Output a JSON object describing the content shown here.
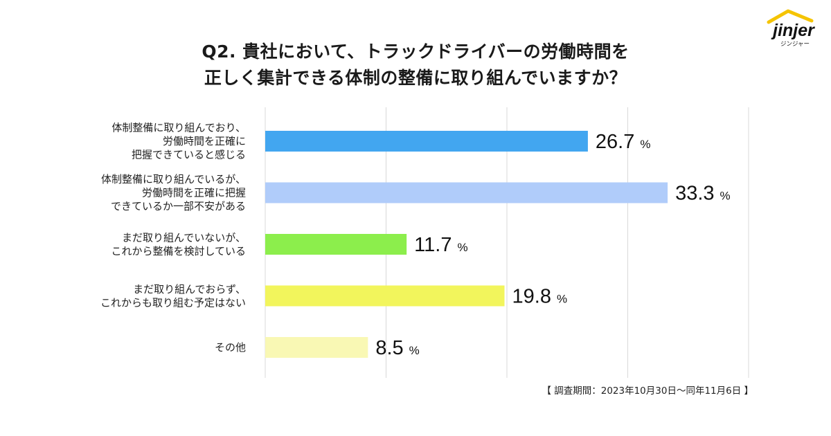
{
  "logo": {
    "brand": "jinjer",
    "sub": "ジンジャー"
  },
  "footnote": "【 調査期間：2023年10月30日〜同年11月6日 】",
  "chart_data": {
    "type": "bar",
    "orientation": "horizontal",
    "title": [
      "Q2. 貴社において、トラックドライバーの労働時間を",
      "正しく集計できる体制の整備に取り組んでいますか？"
    ],
    "categories": [
      [
        "体制整備に取り組んでおり、",
        "労働時間を正確に",
        "把握できていると感じる"
      ],
      [
        "体制整備に取り組んでいるが、",
        "労働時間を正確に把握",
        "できているか一部不安がある"
      ],
      [
        "まだ取り組んでいないが、",
        "これから整備を検討している"
      ],
      [
        "まだ取り組んでおらず、",
        "これからも取り組む予定はない"
      ],
      [
        "その他"
      ]
    ],
    "values": [
      26.7,
      33.3,
      11.7,
      19.8,
      8.5
    ],
    "value_labels": [
      "26.7",
      "33.3",
      "11.7",
      "19.8",
      "8.5"
    ],
    "unit": "%",
    "colors": [
      "#42a6f0",
      "#b0ccfa",
      "#8cee4c",
      "#f2f55c",
      "#f9f8b4"
    ],
    "xlim": [
      0,
      40
    ],
    "gridlines": [
      0,
      10,
      20,
      30,
      40
    ],
    "grid_color": "#d8d8d8"
  }
}
